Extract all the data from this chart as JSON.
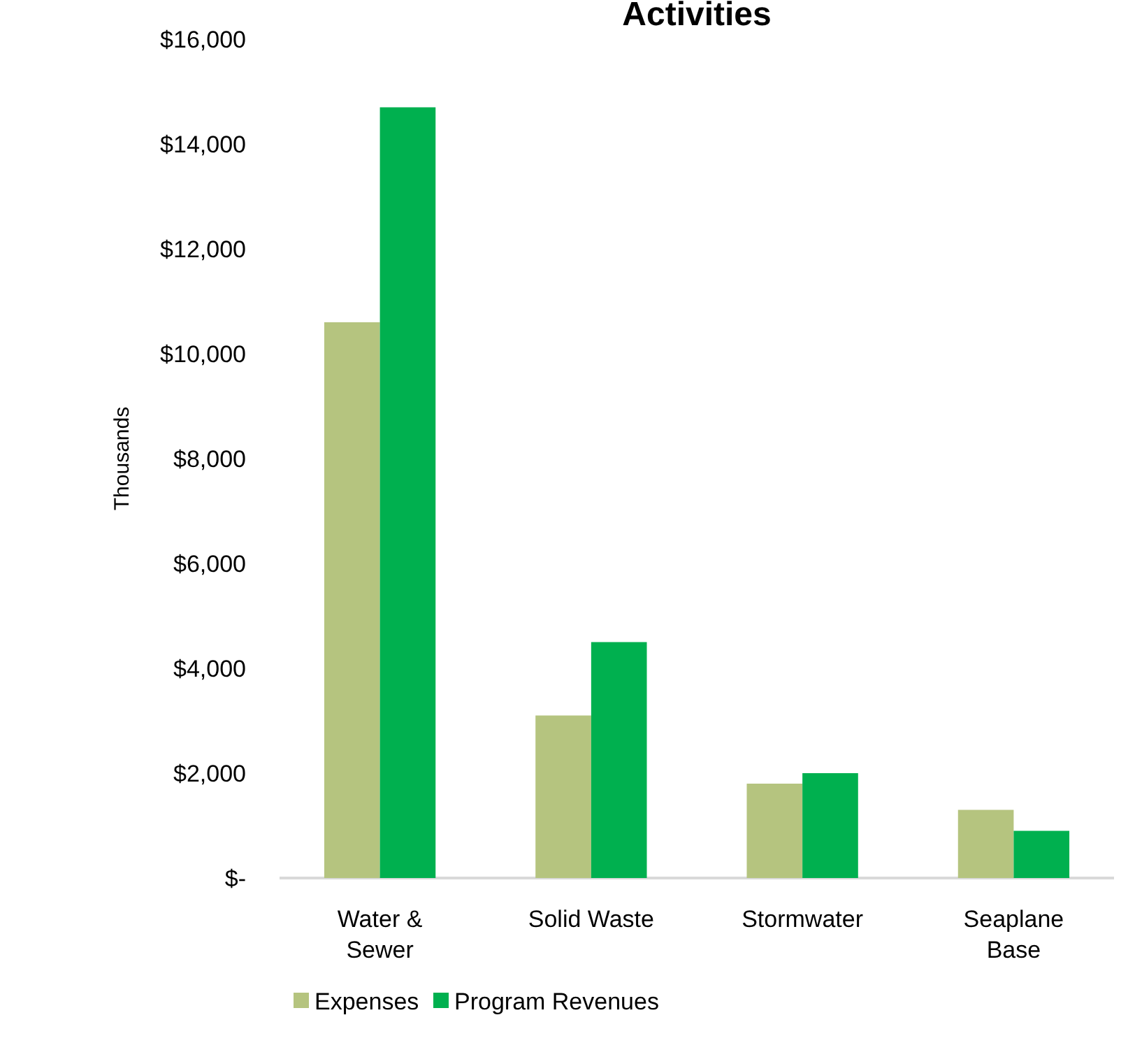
{
  "chart_data": {
    "type": "bar",
    "title": "Activities",
    "ylabel": "Thousands",
    "categories": [
      "Water & Sewer",
      "Solid Waste",
      "Stormwater",
      "Seaplane Base"
    ],
    "series": [
      {
        "name": "Expenses",
        "color": "#b5c47f",
        "values": [
          10600,
          3100,
          1800,
          1300
        ]
      },
      {
        "name": "Program Revenues",
        "color": "#00b04f",
        "values": [
          14700,
          4500,
          2000,
          900
        ]
      }
    ],
    "ylim": [
      0,
      16000
    ],
    "yticks": [
      {
        "value": 0,
        "label": "$-"
      },
      {
        "value": 2000,
        "label": "$2,000"
      },
      {
        "value": 4000,
        "label": "$4,000"
      },
      {
        "value": 6000,
        "label": "$6,000"
      },
      {
        "value": 8000,
        "label": "$8,000"
      },
      {
        "value": 10000,
        "label": "$10,000"
      },
      {
        "value": 12000,
        "label": "$12,000"
      },
      {
        "value": 14000,
        "label": "$14,000"
      },
      {
        "value": 16000,
        "label": "$16,000"
      }
    ],
    "grid": false,
    "legend": "bottom"
  }
}
